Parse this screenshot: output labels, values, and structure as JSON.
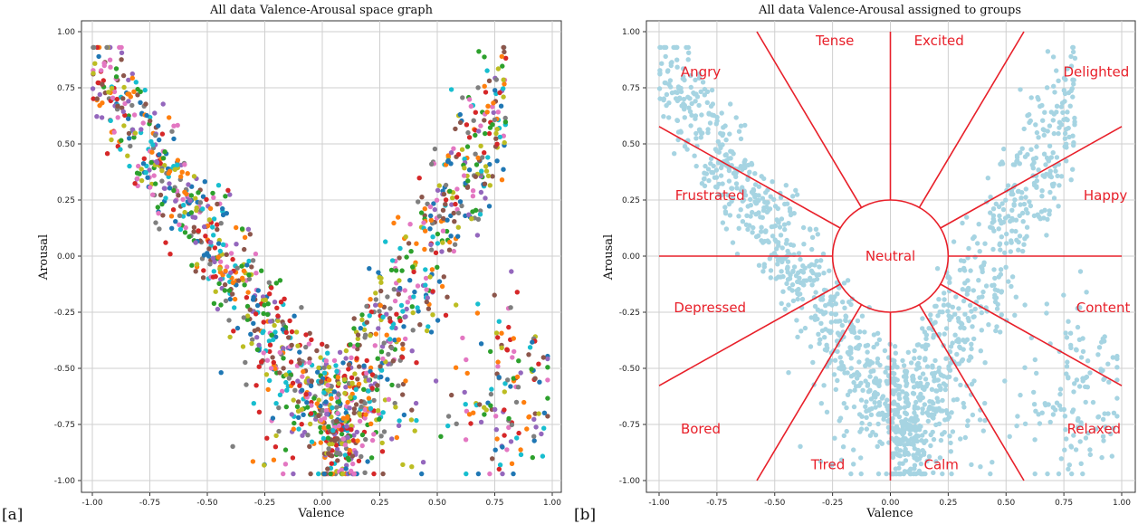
{
  "panel_labels": [
    "[a]",
    "[b]"
  ],
  "colors": {
    "scatter_palette": [
      "#1f77b4",
      "#ff7f0e",
      "#2ca02c",
      "#d62728",
      "#9467bd",
      "#8c564b",
      "#e377c2",
      "#7f7f7f",
      "#bcbd22",
      "#17becf"
    ],
    "group_points": "#a6d4e2",
    "boundaries": "#e8202a",
    "grid": "#cfcfcf"
  },
  "chart_data": [
    {
      "type": "scatter",
      "title": "All data Valence-Arousal space graph",
      "xlabel": "Valence",
      "ylabel": "Arousal",
      "xlim": [
        -1.0,
        1.0
      ],
      "ylim": [
        -1.0,
        1.0
      ],
      "grid": true,
      "xticks": [
        -1.0,
        -0.75,
        -0.5,
        -0.25,
        0.0,
        0.25,
        0.5,
        0.75,
        1.0
      ],
      "yticks": [
        -1.0,
        -0.75,
        -0.5,
        -0.25,
        0.0,
        0.25,
        0.5,
        0.75,
        1.0
      ],
      "xtick_labels": [
        "-1.00",
        "-0.75",
        "-0.50",
        "-0.25",
        "0.00",
        "0.25",
        "0.50",
        "0.75",
        "1.00"
      ],
      "ytick_labels": [
        "-1.00",
        "-0.75",
        "-0.50",
        "-0.25",
        "0.00",
        "0.25",
        "0.50",
        "0.75",
        "1.00"
      ],
      "point_cloud": {
        "description_of_shape": "V-shaped distribution of several thousand points, multi-coloured",
        "approx_points": 1600,
        "x_range": [
          -1.0,
          0.98
        ],
        "y_range": [
          -0.97,
          0.93
        ]
      }
    },
    {
      "type": "scatter",
      "title": "All data Valence-Arousal assigned to groups",
      "xlabel": "Valence",
      "ylabel": "Arousal",
      "xlim": [
        -1.0,
        1.0
      ],
      "ylim": [
        -1.0,
        1.0
      ],
      "grid": true,
      "xticks": [
        -1.0,
        -0.75,
        -0.5,
        -0.25,
        0.0,
        0.25,
        0.5,
        0.75,
        1.0
      ],
      "yticks": [
        -1.0,
        -0.75,
        -0.5,
        -0.25,
        0.0,
        0.25,
        0.5,
        0.75,
        1.0
      ],
      "xtick_labels": [
        "-1.00",
        "-0.75",
        "-0.50",
        "-0.25",
        "0.00",
        "0.25",
        "0.50",
        "0.75",
        "1.00"
      ],
      "ytick_labels": [
        "-1.00",
        "-0.75",
        "-0.50",
        "-0.25",
        "0.00",
        "0.25",
        "0.50",
        "0.75",
        "1.00"
      ],
      "neutral_circle_radius": 0.25,
      "boundary_angles_deg": [
        0,
        30,
        60,
        90,
        120,
        150,
        180,
        210,
        240,
        270,
        300,
        330
      ],
      "regions": [
        {
          "label": "Tense",
          "x": -0.24,
          "y": 0.96
        },
        {
          "label": "Excited",
          "x": 0.21,
          "y": 0.96
        },
        {
          "label": "Angry",
          "x": -0.82,
          "y": 0.82
        },
        {
          "label": "Delighted",
          "x": 0.89,
          "y": 0.82
        },
        {
          "label": "Frustrated",
          "x": -0.78,
          "y": 0.27
        },
        {
          "label": "Happy",
          "x": 0.93,
          "y": 0.27
        },
        {
          "label": "Neutral",
          "x": 0.0,
          "y": 0.0
        },
        {
          "label": "Depressed",
          "x": -0.78,
          "y": -0.23
        },
        {
          "label": "Content",
          "x": 0.92,
          "y": -0.23
        },
        {
          "label": "Bored",
          "x": -0.82,
          "y": -0.77
        },
        {
          "label": "Relaxed",
          "x": 0.88,
          "y": -0.77
        },
        {
          "label": "Tired",
          "x": -0.27,
          "y": -0.93
        },
        {
          "label": "Calm",
          "x": 0.22,
          "y": -0.93
        }
      ]
    }
  ]
}
